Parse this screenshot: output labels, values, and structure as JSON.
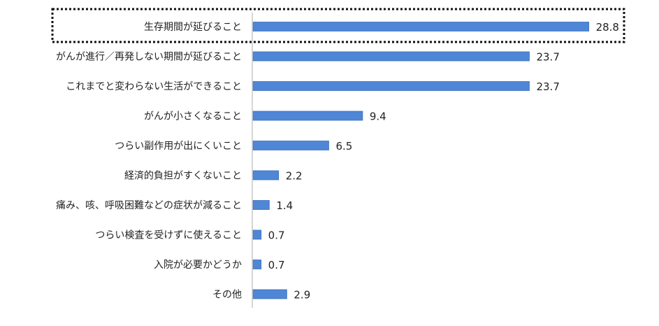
{
  "chart_data": {
    "type": "bar",
    "orientation": "horizontal",
    "categories": [
      "生存期間が延びること",
      "がんが進行／再発しない期間が延びること",
      "これまでと変わらない生活ができること",
      "がんが小さくなること",
      "つらい副作用が出にくいこと",
      "経済的負担がすくないこと",
      "痛み、咳、呼吸困難などの症状が減ること",
      "つらい検査を受けずに使えること",
      "入院が必要かどうか",
      "その他"
    ],
    "values": [
      28.8,
      23.7,
      23.7,
      9.4,
      6.5,
      2.2,
      1.4,
      0.7,
      0.7,
      2.9
    ],
    "value_labels": [
      "28.8",
      "23.7",
      "23.7",
      "9.4",
      "6.5",
      "2.2",
      "1.4",
      "0.7",
      "0.7",
      "2.9"
    ],
    "xlim": [
      0,
      33.5
    ],
    "grid": false,
    "legend": "none",
    "highlight_index": 0,
    "highlight_style": "dotted-box",
    "colors": {
      "bar_fill": "#4f86d6",
      "bar_stroke": "#3d70bd",
      "axis": "#c8c8c8",
      "text": "#222222",
      "highlight_border": "#111111"
    }
  }
}
